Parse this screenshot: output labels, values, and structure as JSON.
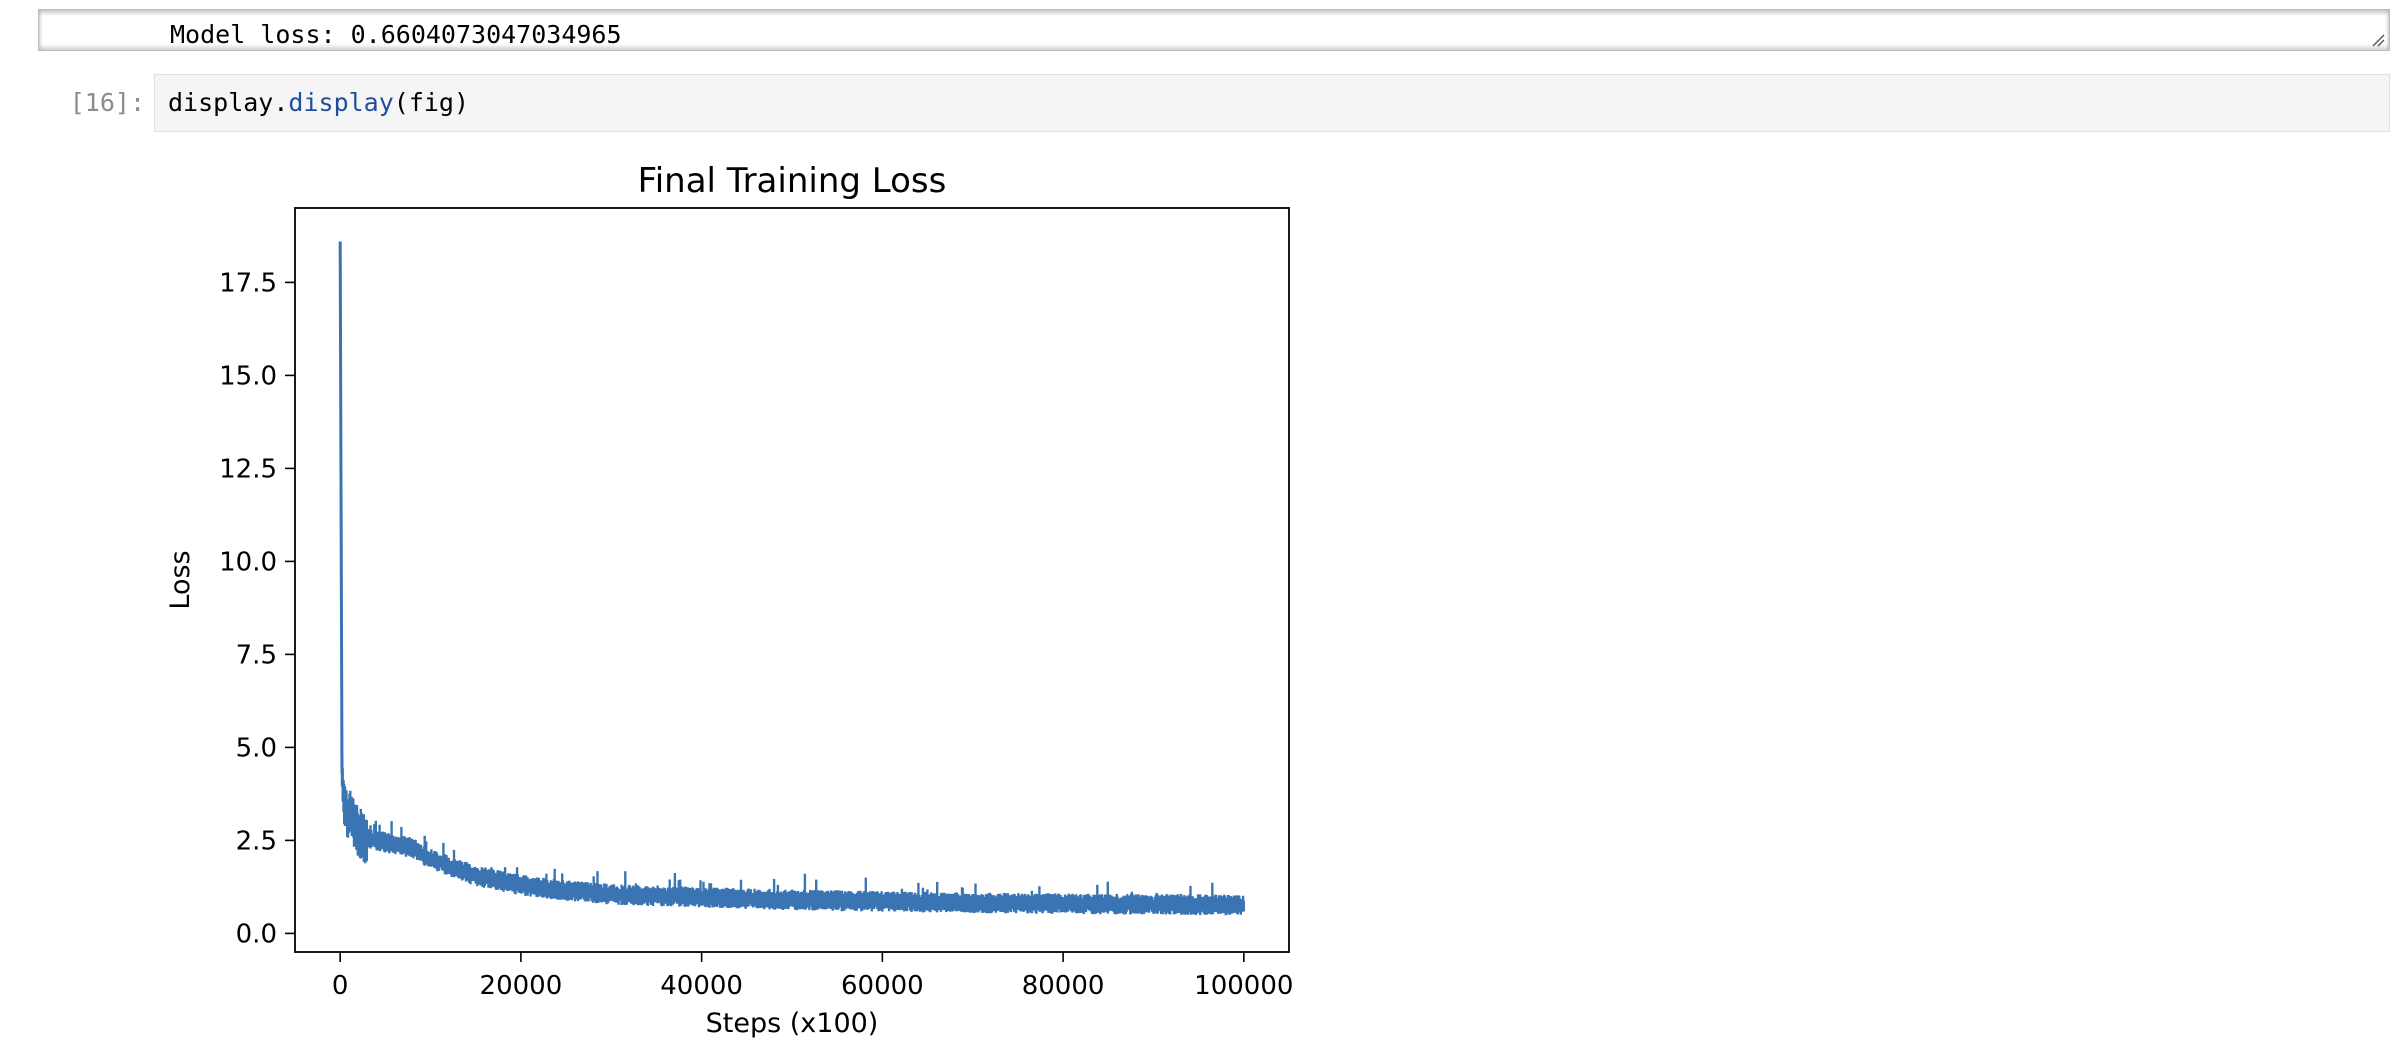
{
  "previous_output": {
    "text": "Model loss: 0.6604073047034965"
  },
  "cell": {
    "prompt": "[16]:",
    "code": {
      "object": "display",
      "dot": ".",
      "method": "display",
      "args": "(fig)"
    }
  },
  "colors": {
    "line": "#3a74b3",
    "function_token": "#1f4f9b",
    "prompt": "#8c8c8c"
  },
  "chart_data": {
    "type": "line",
    "title": "Final Training Loss",
    "xlabel": "Steps (x100)",
    "ylabel": "Loss",
    "xlim": [
      -5000,
      105000
    ],
    "ylim": [
      -0.5,
      19.5
    ],
    "xticks": [
      "0",
      "20000",
      "40000",
      "60000",
      "80000",
      "100000"
    ],
    "yticks": [
      "0.0",
      "2.5",
      "5.0",
      "7.5",
      "10.0",
      "12.5",
      "15.0",
      "17.5"
    ],
    "grid": false,
    "legend": "none",
    "series": [
      {
        "x": [
          0,
          200,
          500,
          1000,
          2000,
          3000,
          5000,
          8000,
          10000,
          15000,
          20000,
          25000,
          30000,
          40000,
          50000,
          60000,
          70000,
          80000,
          90000,
          100000
        ],
        "y": [
          18.6,
          4.3,
          3.4,
          3.2,
          2.7,
          2.55,
          2.45,
          2.3,
          2.0,
          1.55,
          1.3,
          1.15,
          1.05,
          0.97,
          0.9,
          0.86,
          0.82,
          0.8,
          0.78,
          0.76
        ],
        "band": 0.15
      }
    ]
  }
}
